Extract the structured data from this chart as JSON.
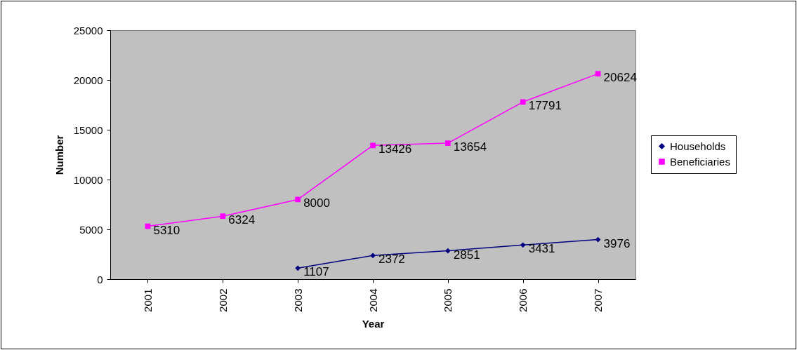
{
  "chart_data": {
    "type": "line",
    "xlabel": "Year",
    "ylabel": "Number",
    "categories": [
      "2001",
      "2002",
      "2003",
      "2004",
      "2005",
      "2006",
      "2007"
    ],
    "series": [
      {
        "name": "Households",
        "color": "#000080",
        "marker": "diamond",
        "values": [
          null,
          null,
          1107,
          2372,
          2851,
          3431,
          3976
        ]
      },
      {
        "name": "Beneficiaries",
        "color": "#ff00ff",
        "marker": "square",
        "values": [
          5310,
          6324,
          8000,
          13426,
          13654,
          17791,
          20624
        ]
      }
    ],
    "ylim": [
      0,
      25000
    ],
    "yticks": [
      0,
      5000,
      10000,
      15000,
      20000,
      25000
    ],
    "grid": false,
    "legend": "right",
    "data_labels": true
  }
}
